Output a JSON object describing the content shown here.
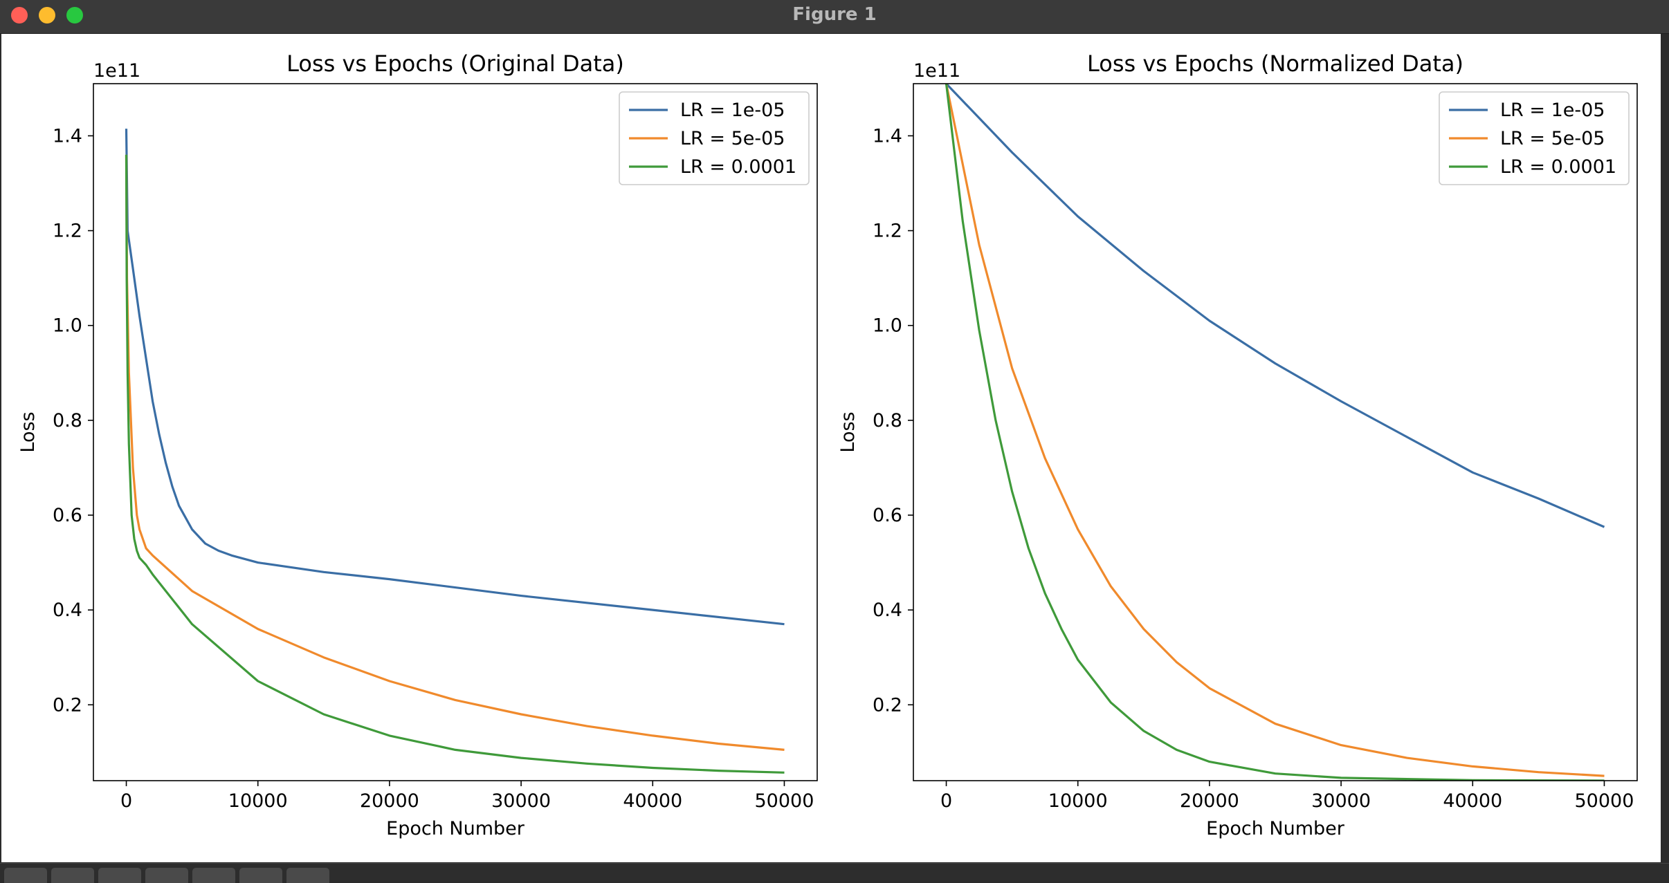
{
  "window": {
    "title": "Figure 1"
  },
  "toolbar": {
    "tools": [
      "home-icon",
      "back-icon",
      "forward-icon",
      "pan-icon",
      "zoom-icon",
      "configure-icon",
      "save-icon"
    ]
  },
  "chart_data": [
    {
      "type": "line",
      "title": "Loss vs Epochs (Original Data)",
      "xlabel": "Epoch Number",
      "ylabel": "Loss",
      "y_offset_label": "1e11",
      "xlim": [
        -2500,
        52500
      ],
      "ylim": [
        0.04,
        1.51
      ],
      "xticks": [
        0,
        10000,
        20000,
        30000,
        40000,
        50000
      ],
      "yticks": [
        0.2,
        0.4,
        0.6,
        0.8,
        1.0,
        1.2,
        1.4
      ],
      "ytick_labels": [
        "0.2",
        "0.4",
        "0.6",
        "0.8",
        "1.0",
        "1.2",
        "1.4"
      ],
      "grid": false,
      "legend_position": "top-right",
      "series": [
        {
          "name": "LR = 1e-05",
          "color": "#3a6ea5",
          "x": [
            0,
            100,
            500,
            1000,
            1500,
            2000,
            2500,
            3000,
            3500,
            4000,
            5000,
            6000,
            7000,
            8000,
            10000,
            15000,
            20000,
            30000,
            40000,
            50000
          ],
          "y": [
            1.415,
            1.2,
            1.12,
            1.02,
            0.93,
            0.84,
            0.77,
            0.71,
            0.66,
            0.62,
            0.57,
            0.54,
            0.525,
            0.515,
            0.5,
            0.48,
            0.465,
            0.43,
            0.4,
            0.37
          ]
        },
        {
          "name": "LR = 5e-05",
          "color": "#f08a2c",
          "x": [
            0,
            50,
            200,
            500,
            800,
            1000,
            1500,
            2000,
            3000,
            5000,
            10000,
            15000,
            20000,
            25000,
            30000,
            35000,
            40000,
            45000,
            50000
          ],
          "y": [
            1.36,
            1.1,
            0.9,
            0.7,
            0.6,
            0.57,
            0.53,
            0.515,
            0.49,
            0.44,
            0.36,
            0.3,
            0.25,
            0.21,
            0.18,
            0.155,
            0.135,
            0.118,
            0.105
          ]
        },
        {
          "name": "LR = 0.0001",
          "color": "#3f9a3a",
          "x": [
            0,
            30,
            100,
            200,
            400,
            600,
            800,
            1000,
            1500,
            2000,
            3000,
            5000,
            10000,
            15000,
            20000,
            25000,
            30000,
            35000,
            40000,
            45000,
            50000
          ],
          "y": [
            1.36,
            1.1,
            0.9,
            0.75,
            0.6,
            0.55,
            0.525,
            0.51,
            0.495,
            0.475,
            0.44,
            0.37,
            0.25,
            0.18,
            0.135,
            0.105,
            0.088,
            0.076,
            0.067,
            0.061,
            0.057
          ]
        }
      ]
    },
    {
      "type": "line",
      "title": "Loss vs Epochs (Normalized Data)",
      "xlabel": "Epoch Number",
      "ylabel": "Loss",
      "y_offset_label": "1e11",
      "xlim": [
        -2500,
        52500
      ],
      "ylim": [
        0.04,
        1.51
      ],
      "xticks": [
        0,
        10000,
        20000,
        30000,
        40000,
        50000
      ],
      "yticks": [
        0.2,
        0.4,
        0.6,
        0.8,
        1.0,
        1.2,
        1.4
      ],
      "ytick_labels": [
        "0.2",
        "0.4",
        "0.6",
        "0.8",
        "1.0",
        "1.2",
        "1.4"
      ],
      "grid": false,
      "legend_position": "top-right",
      "series": [
        {
          "name": "LR = 1e-05",
          "color": "#3a6ea5",
          "x": [
            0,
            5000,
            10000,
            15000,
            20000,
            25000,
            30000,
            35000,
            40000,
            45000,
            50000
          ],
          "y": [
            1.51,
            1.365,
            1.23,
            1.115,
            1.01,
            0.92,
            0.84,
            0.765,
            0.69,
            0.635,
            0.575
          ]
        },
        {
          "name": "LR = 5e-05",
          "color": "#f08a2c",
          "x": [
            0,
            2500,
            5000,
            7500,
            10000,
            12500,
            15000,
            17500,
            20000,
            25000,
            30000,
            35000,
            40000,
            45000,
            50000
          ],
          "y": [
            1.51,
            1.17,
            0.91,
            0.72,
            0.57,
            0.45,
            0.36,
            0.29,
            0.235,
            0.16,
            0.115,
            0.088,
            0.07,
            0.058,
            0.05
          ]
        },
        {
          "name": "LR = 0.0001",
          "color": "#3f9a3a",
          "x": [
            0,
            1250,
            2500,
            3750,
            5000,
            6250,
            7500,
            8750,
            10000,
            12500,
            15000,
            17500,
            20000,
            25000,
            30000,
            40000,
            50000
          ],
          "y": [
            1.51,
            1.22,
            0.99,
            0.8,
            0.65,
            0.53,
            0.435,
            0.36,
            0.295,
            0.205,
            0.145,
            0.105,
            0.08,
            0.055,
            0.046,
            0.041,
            0.04
          ]
        }
      ]
    }
  ]
}
